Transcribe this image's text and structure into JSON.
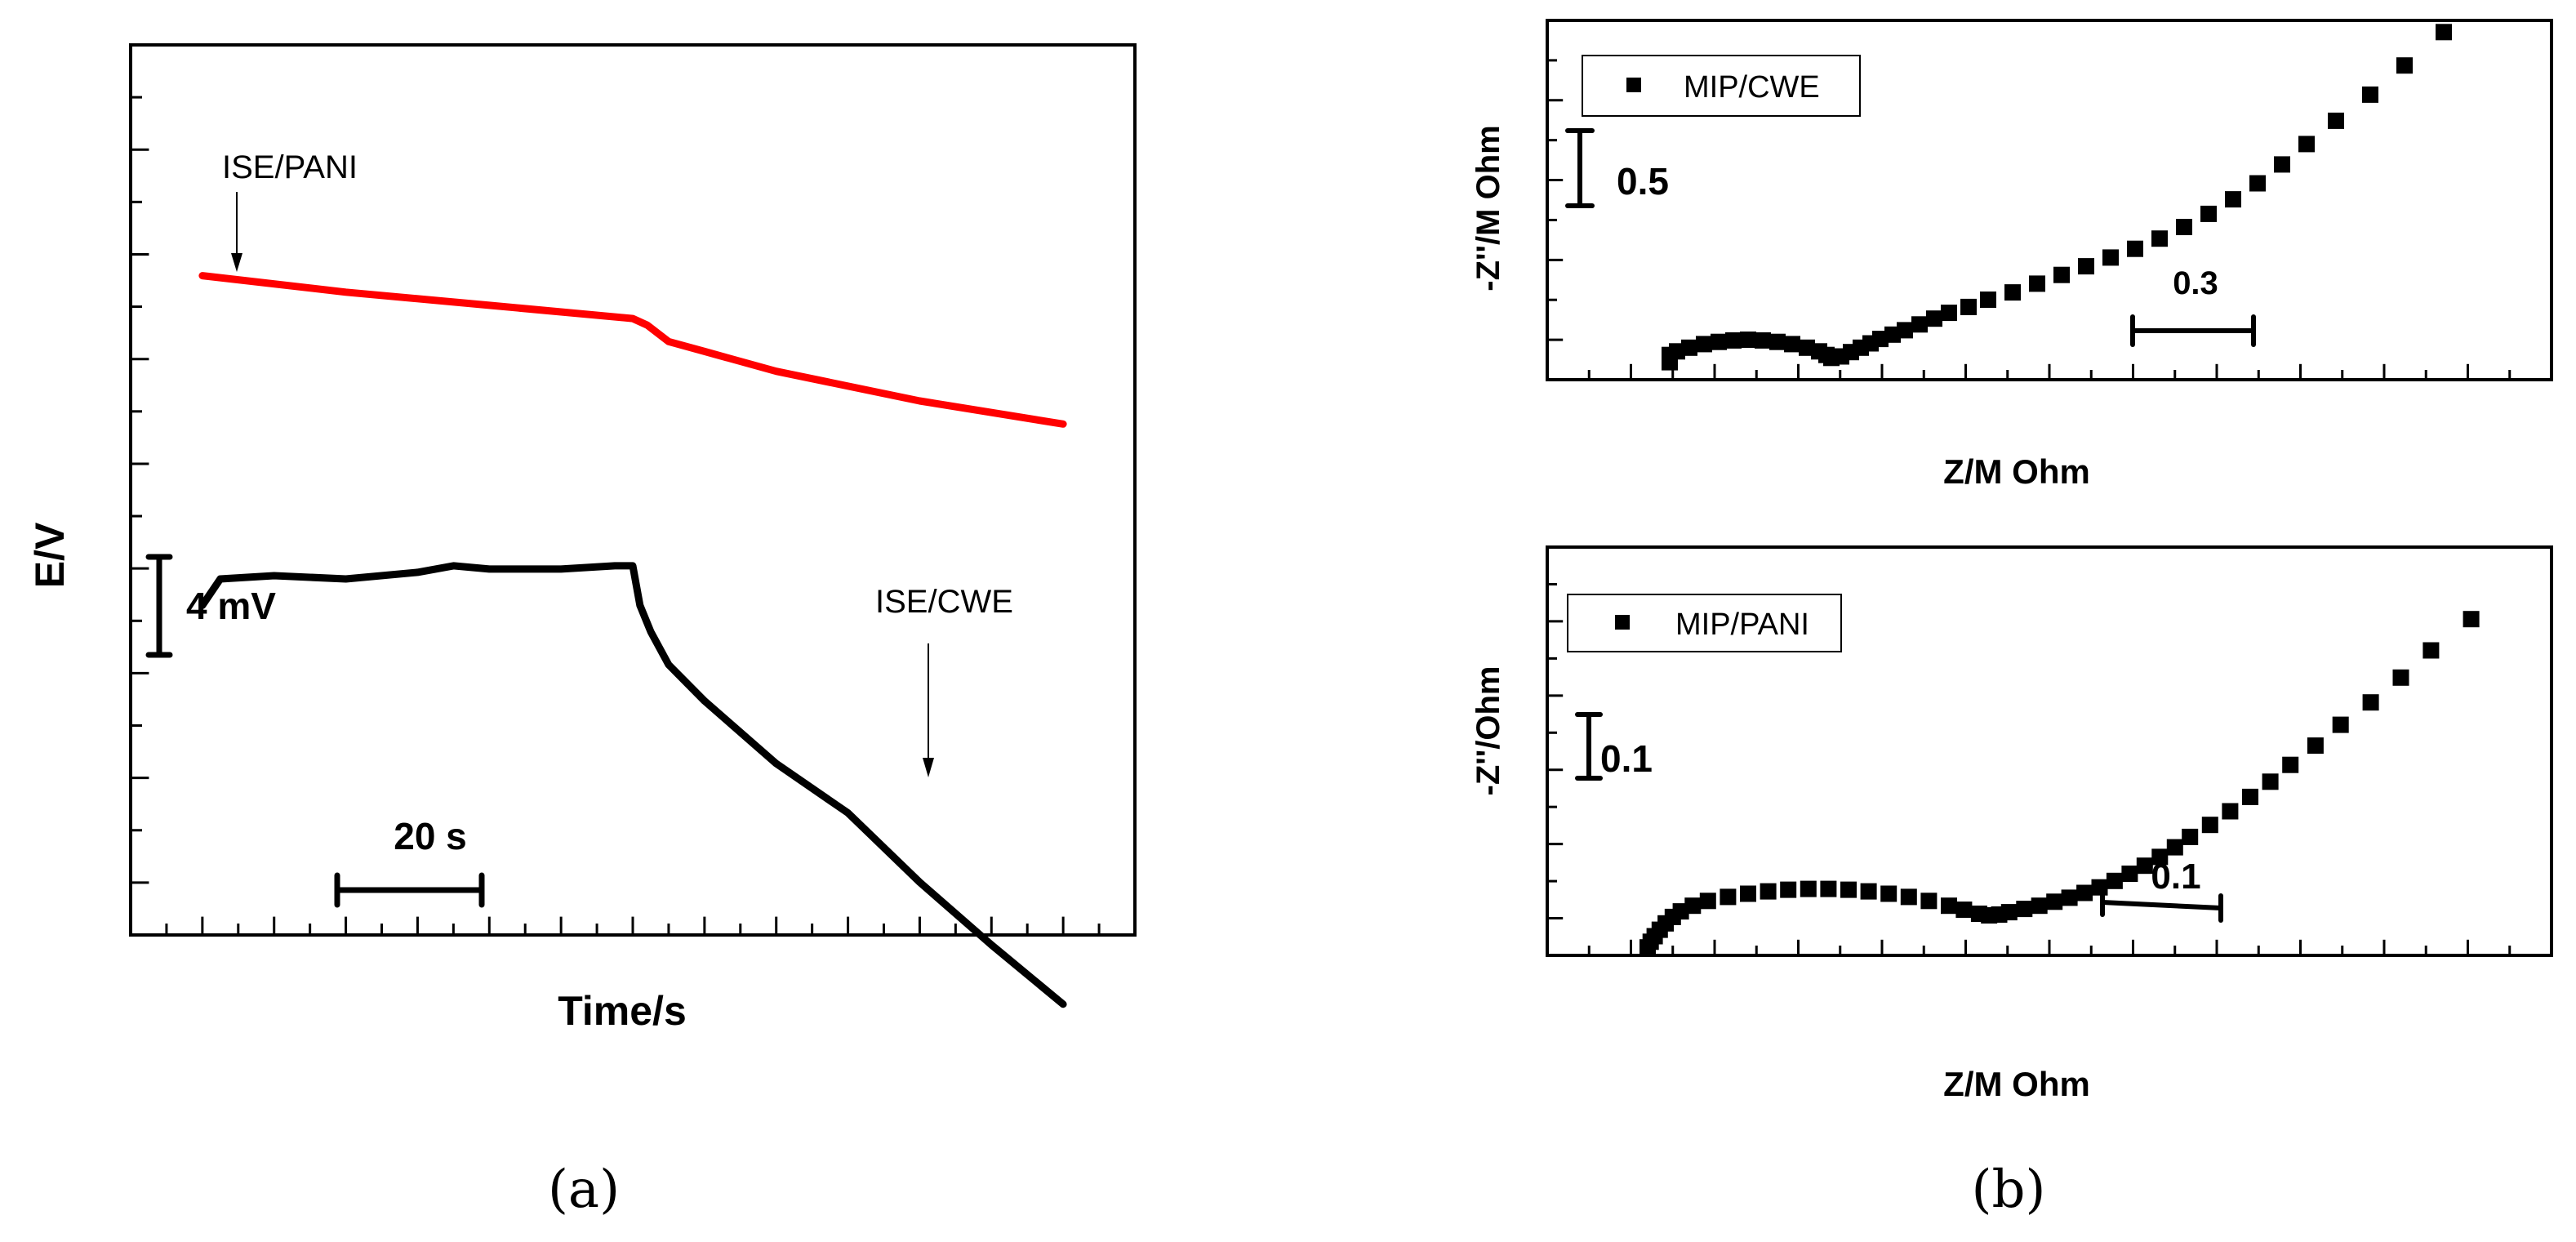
{
  "chart_data": [
    {
      "type": "line",
      "panel_caption": "(a)",
      "xlabel": "Time/s",
      "ylabel": "E/V",
      "x_range": [
        -20,
        260
      ],
      "y_range": [
        -20,
        7
      ],
      "series": [
        {
          "name": "ISE/PANI",
          "color": "#ff0000",
          "x": [
            0,
            40,
            80,
            120,
            124,
            130,
            140,
            160,
            200,
            240
          ],
          "y": [
            0.0,
            -0.5,
            -0.9,
            -1.3,
            -1.5,
            -2.0,
            -2.3,
            -2.9,
            -3.8,
            -4.5
          ]
        },
        {
          "name": "ISE/CWE",
          "color": "#000000",
          "x": [
            0,
            5,
            20,
            40,
            60,
            70,
            80,
            100,
            115,
            120,
            122,
            125,
            130,
            140,
            160,
            180,
            200,
            220,
            240
          ],
          "y": [
            -10.0,
            -9.2,
            -9.1,
            -9.2,
            -9.0,
            -8.8,
            -8.9,
            -8.9,
            -8.8,
            -8.8,
            -10.0,
            -10.8,
            -11.8,
            -12.9,
            -14.8,
            -16.3,
            -18.4,
            -20.3,
            -22.1
          ]
        }
      ],
      "annotations": [
        {
          "text": "ISE/PANI",
          "points_to": "ISE/PANI"
        },
        {
          "text": "ISE/CWE",
          "points_to": "ISE/CWE"
        }
      ],
      "scale_bars": {
        "y": {
          "value": 4,
          "label": "4 mV"
        },
        "x": {
          "value": 20,
          "label": "20 s"
        }
      }
    },
    {
      "type": "scatter",
      "panel_caption": "(b)",
      "xlabel": "Z/M Ohm",
      "ylabel": "-Z''/M Ohm",
      "legend": "MIP/CWE",
      "legend_position": "top-left",
      "x_range": [
        -0.25,
        1.8
      ],
      "y_range": [
        -0.12,
        2.35
      ],
      "scale_bars": {
        "y": {
          "value": 0.5,
          "label": "0.5"
        },
        "x": {
          "value": 0.3,
          "label": "0.3"
        }
      },
      "points": [
        [
          0.0,
          0.0
        ],
        [
          0.0,
          0.05
        ],
        [
          0.015,
          0.075
        ],
        [
          0.04,
          0.1
        ],
        [
          0.07,
          0.125
        ],
        [
          0.1,
          0.14
        ],
        [
          0.13,
          0.15
        ],
        [
          0.16,
          0.155
        ],
        [
          0.19,
          0.15
        ],
        [
          0.22,
          0.14
        ],
        [
          0.25,
          0.125
        ],
        [
          0.28,
          0.1
        ],
        [
          0.305,
          0.075
        ],
        [
          0.32,
          0.05
        ],
        [
          0.33,
          0.03
        ],
        [
          0.35,
          0.04
        ],
        [
          0.37,
          0.07
        ],
        [
          0.39,
          0.1
        ],
        [
          0.41,
          0.13
        ],
        [
          0.43,
          0.16
        ],
        [
          0.455,
          0.19
        ],
        [
          0.48,
          0.22
        ],
        [
          0.51,
          0.26
        ],
        [
          0.54,
          0.3
        ],
        [
          0.57,
          0.34
        ],
        [
          0.61,
          0.38
        ],
        [
          0.65,
          0.43
        ],
        [
          0.7,
          0.48
        ],
        [
          0.75,
          0.54
        ],
        [
          0.8,
          0.6
        ],
        [
          0.85,
          0.66
        ],
        [
          0.9,
          0.72
        ],
        [
          0.95,
          0.78
        ],
        [
          1.0,
          0.85
        ],
        [
          1.05,
          0.93
        ],
        [
          1.1,
          1.02
        ],
        [
          1.15,
          1.12
        ],
        [
          1.2,
          1.23
        ],
        [
          1.25,
          1.36
        ],
        [
          1.3,
          1.5
        ],
        [
          1.36,
          1.66
        ],
        [
          1.43,
          1.84
        ],
        [
          1.5,
          2.04
        ],
        [
          1.58,
          2.27
        ]
      ]
    },
    {
      "type": "scatter",
      "xlabel": "Z/M Ohm",
      "ylabel": "-Z''/Ohm",
      "legend": "MIP/PANI",
      "legend_position": "top-left",
      "x_range": [
        -0.1,
        0.9
      ],
      "y_range": [
        -0.01,
        0.5
      ],
      "scale_bars": {
        "y": {
          "value": 0.1,
          "label": "0.1"
        },
        "x": {
          "value": 0.1,
          "label": "0.1"
        }
      },
      "points": [
        [
          0.0,
          0.0
        ],
        [
          0.003,
          0.007
        ],
        [
          0.007,
          0.014
        ],
        [
          0.012,
          0.022
        ],
        [
          0.018,
          0.03
        ],
        [
          0.025,
          0.038
        ],
        [
          0.033,
          0.045
        ],
        [
          0.045,
          0.052
        ],
        [
          0.06,
          0.058
        ],
        [
          0.08,
          0.063
        ],
        [
          0.1,
          0.067
        ],
        [
          0.12,
          0.07
        ],
        [
          0.14,
          0.072
        ],
        [
          0.16,
          0.073
        ],
        [
          0.18,
          0.073
        ],
        [
          0.2,
          0.072
        ],
        [
          0.22,
          0.07
        ],
        [
          0.24,
          0.067
        ],
        [
          0.26,
          0.063
        ],
        [
          0.28,
          0.058
        ],
        [
          0.3,
          0.052
        ],
        [
          0.315,
          0.047
        ],
        [
          0.33,
          0.042
        ],
        [
          0.34,
          0.04
        ],
        [
          0.35,
          0.041
        ],
        [
          0.36,
          0.044
        ],
        [
          0.375,
          0.048
        ],
        [
          0.39,
          0.052
        ],
        [
          0.405,
          0.057
        ],
        [
          0.42,
          0.062
        ],
        [
          0.435,
          0.068
        ],
        [
          0.45,
          0.075
        ],
        [
          0.465,
          0.083
        ],
        [
          0.48,
          0.092
        ],
        [
          0.495,
          0.102
        ],
        [
          0.51,
          0.113
        ],
        [
          0.525,
          0.125
        ],
        [
          0.54,
          0.138
        ],
        [
          0.56,
          0.153
        ],
        [
          0.58,
          0.17
        ],
        [
          0.6,
          0.188
        ],
        [
          0.62,
          0.207
        ],
        [
          0.64,
          0.228
        ],
        [
          0.665,
          0.252
        ],
        [
          0.69,
          0.278
        ],
        [
          0.72,
          0.306
        ],
        [
          0.75,
          0.337
        ],
        [
          0.78,
          0.371
        ],
        [
          0.82,
          0.41
        ]
      ]
    }
  ]
}
